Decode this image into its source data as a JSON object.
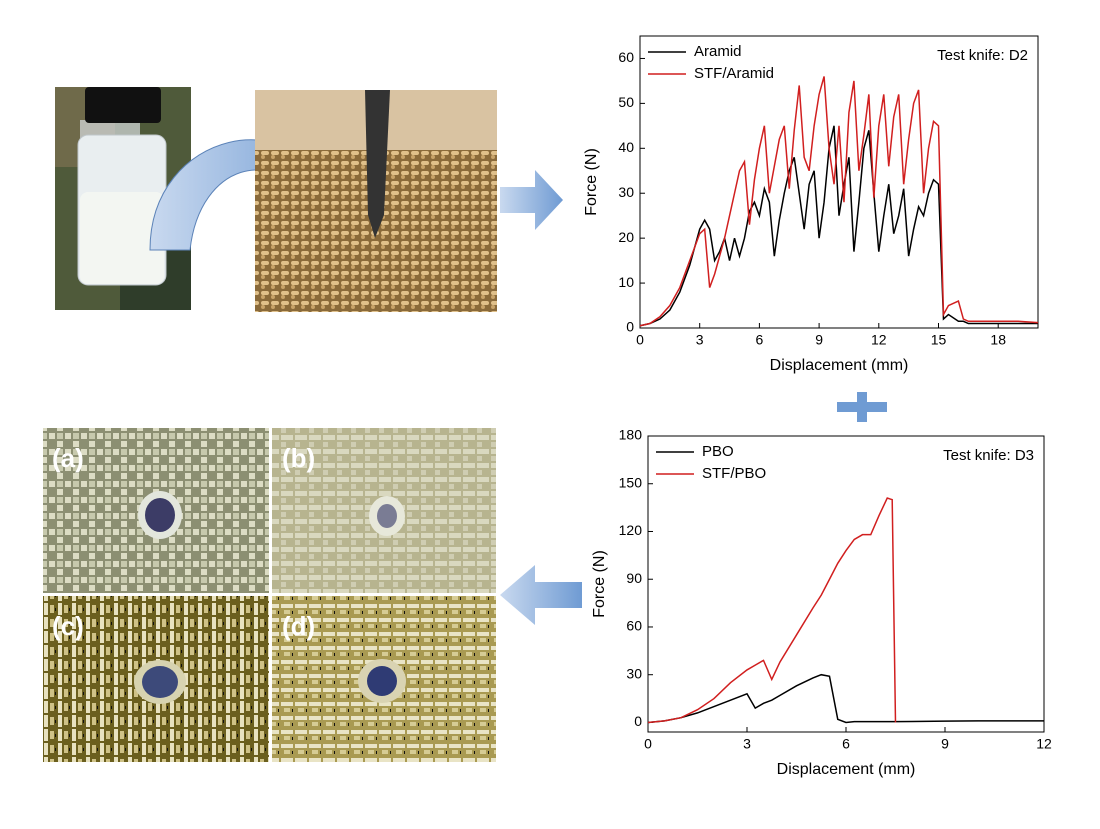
{
  "chart_data": [
    {
      "type": "line",
      "annotation": "Test knife: D2",
      "xlabel": "Displacement (mm)",
      "ylabel": "Force (N)",
      "x": [
        0,
        0.5,
        1,
        1.5,
        2,
        2.5,
        3,
        3.25,
        3.5,
        3.75,
        4,
        4.25,
        4.5,
        4.75,
        5,
        5.25,
        5.5,
        5.75,
        6,
        6.25,
        6.5,
        6.75,
        7,
        7.25,
        7.5,
        7.75,
        8,
        8.25,
        8.5,
        8.75,
        9,
        9.25,
        9.5,
        9.75,
        10,
        10.25,
        10.5,
        10.75,
        11,
        11.25,
        11.5,
        11.75,
        12,
        12.25,
        12.5,
        12.75,
        13,
        13.25,
        13.5,
        13.75,
        14,
        14.25,
        14.5,
        14.75,
        15,
        15.25,
        15.5,
        16,
        16.25,
        16.5,
        17,
        18,
        19,
        20
      ],
      "series": [
        {
          "name": "Aramid",
          "color": "#000000",
          "values": [
            0.5,
            1,
            2,
            4,
            8,
            14,
            22,
            24,
            22,
            15,
            17,
            20,
            15,
            20,
            16,
            20,
            26,
            28,
            25,
            31,
            28,
            16,
            24,
            30,
            35,
            38,
            30,
            22,
            32,
            35,
            20,
            28,
            40,
            45,
            25,
            32,
            38,
            17,
            28,
            40,
            44,
            30,
            17,
            25,
            32,
            21,
            25,
            31,
            16,
            22,
            27,
            25,
            30,
            33,
            32,
            2,
            3,
            1.5,
            1.5,
            1,
            1,
            1,
            1,
            1
          ]
        },
        {
          "name": "STF/Aramid",
          "color": "#d11f1f",
          "values": [
            0.5,
            1,
            2.5,
            5,
            9,
            15,
            21,
            22,
            9,
            12,
            16,
            20,
            25,
            30,
            35,
            37,
            23,
            33,
            40,
            45,
            30,
            36,
            42,
            45,
            31,
            44,
            54,
            38,
            35,
            45,
            52,
            56,
            40,
            32,
            45,
            28,
            48,
            55,
            35,
            43,
            52,
            29,
            45,
            52,
            36,
            47,
            52,
            32,
            42,
            50,
            53,
            30,
            40,
            46,
            45,
            3,
            5,
            6,
            2,
            1.5,
            1.5,
            1.5,
            1.5,
            1.2
          ]
        }
      ],
      "xlim": [
        0,
        20
      ],
      "ylim": [
        0,
        65
      ],
      "xticks": [
        0,
        3,
        6,
        9,
        12,
        15,
        18
      ],
      "yticks": [
        0,
        10,
        20,
        30,
        40,
        50,
        60
      ]
    },
    {
      "type": "line",
      "annotation": "Test knife: D3",
      "xlabel": "Displacement (mm)",
      "ylabel": "Force (N)",
      "x": [
        0,
        0.5,
        1,
        1.5,
        2,
        2.5,
        3,
        3.25,
        3.5,
        3.75,
        4,
        4.5,
        5,
        5.25,
        5.5,
        5.75,
        6,
        6.25,
        6.5,
        6.75,
        7,
        7.25,
        7.4,
        7.5,
        8,
        9,
        10,
        11,
        12
      ],
      "series": [
        {
          "name": "PBO",
          "color": "#000000",
          "values": [
            0,
            1,
            3,
            6,
            10,
            14,
            18,
            9,
            12,
            14,
            17,
            23,
            28,
            30,
            29,
            2,
            0,
            0.5,
            0.5,
            0.5,
            0.5,
            0.5,
            0.5,
            0.5,
            0.6,
            0.8,
            1,
            1,
            1
          ]
        },
        {
          "name": "STF/PBO",
          "color": "#d11f1f",
          "values": [
            0,
            1,
            3,
            8,
            15,
            25,
            33,
            36,
            39,
            27,
            38,
            55,
            72,
            80,
            90,
            100,
            108,
            115,
            118,
            118,
            130,
            141,
            140,
            0,
            null,
            null,
            null,
            null,
            null
          ]
        }
      ],
      "xlim": [
        0,
        12
      ],
      "ylim": [
        -6,
        180
      ],
      "xticks": [
        0,
        3,
        6,
        9,
        12
      ],
      "yticks": [
        0,
        30,
        60,
        90,
        120,
        150,
        180
      ]
    }
  ],
  "image_labels": [
    "(a)",
    "(b)",
    "(c)",
    "(d)"
  ]
}
